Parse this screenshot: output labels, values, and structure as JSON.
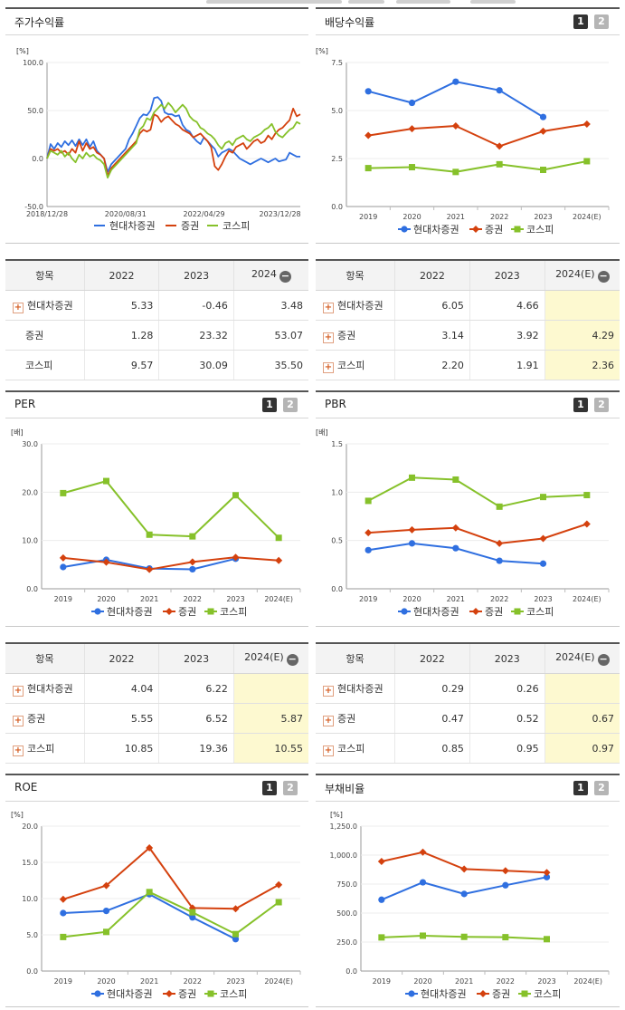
{
  "panels": {
    "p1": {
      "title": "주가수익률",
      "pager": false
    },
    "p2": {
      "title": "배당수익률",
      "pager": true
    },
    "p3": {
      "title": "PER",
      "pager": true
    },
    "p4": {
      "title": "PBR",
      "pager": true
    },
    "p5": {
      "title": "ROE",
      "pager": true
    },
    "p6": {
      "title": "부채비율",
      "pager": true
    }
  },
  "pager": {
    "p1": "1",
    "p2": "2"
  },
  "legend": [
    {
      "name": "현대차증권",
      "color": "#2f6fe0",
      "marker": "circle"
    },
    {
      "name": "증권",
      "color": "#d4410e",
      "marker": "diamond"
    },
    {
      "name": "코스피",
      "color": "#86c12a",
      "marker": "square"
    }
  ],
  "chart_data": [
    {
      "type": "line",
      "id": "p1",
      "unit": "[%]",
      "ylim": [
        -50,
        100
      ],
      "yticks": [
        "100.0",
        "50.0",
        "0.0",
        "-50.0"
      ],
      "yticks_val": [
        100,
        50,
        0,
        -50
      ],
      "x_tick_labels": [
        "2018/12/28",
        "2020/08/31",
        "2022/04/29",
        "2023/12/28"
      ],
      "x_tick_pos": [
        0,
        0.31,
        0.62,
        0.92
      ],
      "series": [
        {
          "name": "현대차증권",
          "values": [
            0,
            15,
            10,
            16,
            12,
            18,
            14,
            19,
            13,
            20,
            14,
            20,
            12,
            18,
            8,
            4,
            0,
            -14,
            -6,
            -2,
            2,
            6,
            10,
            20,
            26,
            34,
            42,
            46,
            45,
            50,
            63,
            64,
            60,
            48,
            46,
            46,
            44,
            45,
            35,
            30,
            28,
            22,
            18,
            15,
            22,
            18,
            14,
            10,
            2,
            6,
            8,
            10,
            8,
            4,
            0,
            -2,
            -4,
            -6,
            -4,
            -2,
            0,
            -2,
            -4,
            -2,
            0,
            -3,
            -2,
            -1,
            6,
            4,
            2,
            2
          ]
        },
        {
          "name": "증권",
          "values": [
            0,
            10,
            8,
            10,
            6,
            8,
            4,
            10,
            6,
            18,
            8,
            16,
            10,
            12,
            6,
            4,
            0,
            -18,
            -10,
            -6,
            -2,
            2,
            6,
            10,
            14,
            18,
            26,
            30,
            28,
            30,
            46,
            44,
            38,
            42,
            44,
            40,
            36,
            34,
            30,
            28,
            26,
            22,
            24,
            26,
            22,
            18,
            12,
            -8,
            -12,
            -6,
            2,
            8,
            6,
            12,
            14,
            16,
            10,
            14,
            18,
            20,
            16,
            18,
            24,
            20,
            26,
            30,
            32,
            36,
            40,
            52,
            44,
            46
          ]
        },
        {
          "name": "코스피",
          "values": [
            0,
            8,
            6,
            4,
            8,
            2,
            6,
            0,
            -4,
            4,
            0,
            6,
            2,
            4,
            0,
            -2,
            -6,
            -20,
            -12,
            -8,
            -4,
            0,
            4,
            8,
            12,
            16,
            30,
            34,
            42,
            40,
            48,
            52,
            56,
            52,
            58,
            54,
            48,
            52,
            56,
            52,
            44,
            40,
            38,
            32,
            30,
            26,
            24,
            20,
            14,
            10,
            16,
            18,
            14,
            20,
            22,
            24,
            20,
            18,
            22,
            24,
            26,
            30,
            32,
            36,
            28,
            24,
            22,
            26,
            30,
            32,
            38,
            36
          ]
        }
      ]
    },
    {
      "type": "line",
      "id": "p2",
      "unit": "[%]",
      "ylim": [
        0,
        7.5
      ],
      "yticks": [
        "7.5",
        "5.0",
        "2.5",
        "0.0"
      ],
      "yticks_val": [
        7.5,
        5.0,
        2.5,
        0.0
      ],
      "categories": [
        "2019",
        "2020",
        "2021",
        "2022",
        "2023",
        "2024(E)"
      ],
      "series": [
        {
          "name": "현대차증권",
          "values": [
            6.0,
            5.4,
            6.5,
            6.05,
            4.66,
            null
          ]
        },
        {
          "name": "증권",
          "values": [
            3.7,
            4.05,
            4.2,
            3.14,
            3.92,
            4.29
          ]
        },
        {
          "name": "코스피",
          "values": [
            2.0,
            2.05,
            1.8,
            2.2,
            1.91,
            2.36
          ]
        }
      ]
    },
    {
      "type": "line",
      "id": "p3",
      "unit": "[배]",
      "ylim": [
        0,
        30
      ],
      "yticks": [
        "30.0",
        "20.0",
        "10.0",
        "0.0"
      ],
      "yticks_val": [
        30,
        20,
        10,
        0
      ],
      "categories": [
        "2019",
        "2020",
        "2021",
        "2022",
        "2023",
        "2024(E)"
      ],
      "series": [
        {
          "name": "현대차증권",
          "values": [
            4.5,
            6.0,
            4.2,
            4.04,
            6.22,
            null
          ]
        },
        {
          "name": "증권",
          "values": [
            6.4,
            5.5,
            4.0,
            5.55,
            6.52,
            5.87
          ]
        },
        {
          "name": "코스피",
          "values": [
            19.8,
            22.3,
            11.2,
            10.85,
            19.36,
            10.55
          ]
        }
      ]
    },
    {
      "type": "line",
      "id": "p4",
      "unit": "[배]",
      "ylim": [
        0,
        1.5
      ],
      "yticks": [
        "1.5",
        "1.0",
        "0.5",
        "0.0"
      ],
      "yticks_val": [
        1.5,
        1.0,
        0.5,
        0.0
      ],
      "categories": [
        "2019",
        "2020",
        "2021",
        "2022",
        "2023",
        "2024(E)"
      ],
      "series": [
        {
          "name": "현대차증권",
          "values": [
            0.4,
            0.47,
            0.42,
            0.29,
            0.26,
            null
          ]
        },
        {
          "name": "증권",
          "values": [
            0.58,
            0.61,
            0.63,
            0.47,
            0.52,
            0.67
          ]
        },
        {
          "name": "코스피",
          "values": [
            0.91,
            1.15,
            1.13,
            0.85,
            0.95,
            0.97
          ]
        }
      ]
    },
    {
      "type": "line",
      "id": "p5",
      "unit": "[%]",
      "ylim": [
        0,
        20
      ],
      "yticks": [
        "20.0",
        "15.0",
        "10.0",
        "5.0",
        "0.0"
      ],
      "yticks_val": [
        20,
        15,
        10,
        5,
        0
      ],
      "categories": [
        "2019",
        "2020",
        "2021",
        "2022",
        "2023",
        "2024(E)"
      ],
      "series": [
        {
          "name": "현대차증권",
          "values": [
            8.0,
            8.3,
            10.6,
            7.4,
            4.4,
            null
          ]
        },
        {
          "name": "증권",
          "values": [
            9.9,
            11.8,
            17.0,
            8.7,
            8.6,
            11.9
          ]
        },
        {
          "name": "코스피",
          "values": [
            4.7,
            5.4,
            10.9,
            8.1,
            5.1,
            9.5
          ]
        }
      ]
    },
    {
      "type": "line",
      "id": "p6",
      "unit": "[%]",
      "ylim": [
        0,
        1250
      ],
      "yticks": [
        "1,250.0",
        "1,000.0",
        "750.0",
        "500.0",
        "250.0",
        "0.0"
      ],
      "yticks_val": [
        1250,
        1000,
        750,
        500,
        250,
        0
      ],
      "categories": [
        "2019",
        "2020",
        "2021",
        "2022",
        "2023",
        "2024(E)"
      ],
      "series": [
        {
          "name": "현대차증권",
          "values": [
            615,
            765,
            665,
            740,
            810,
            null
          ]
        },
        {
          "name": "증권",
          "values": [
            945,
            1025,
            880,
            865,
            850,
            null
          ]
        },
        {
          "name": "코스피",
          "values": [
            290,
            305,
            295,
            292,
            275,
            null
          ]
        }
      ]
    }
  ],
  "tables": {
    "t1": {
      "headers": [
        "항목",
        "2022",
        "2023",
        "2024"
      ],
      "rows": [
        {
          "name": "현대차증권",
          "plus": true,
          "cells": [
            "5.33",
            "-0.46",
            "3.48"
          ]
        },
        {
          "name": "증권",
          "plus": false,
          "cells": [
            "1.28",
            "23.32",
            "53.07"
          ]
        },
        {
          "name": "코스피",
          "plus": false,
          "cells": [
            "9.57",
            "30.09",
            "35.50"
          ]
        }
      ]
    },
    "t2": {
      "headers": [
        "항목",
        "2022",
        "2023",
        "2024(E)"
      ],
      "rows": [
        {
          "name": "현대차증권",
          "plus": true,
          "cells": [
            "6.05",
            "4.66",
            ""
          ]
        },
        {
          "name": "증권",
          "plus": true,
          "cells": [
            "3.14",
            "3.92",
            "4.29"
          ]
        },
        {
          "name": "코스피",
          "plus": true,
          "cells": [
            "2.20",
            "1.91",
            "2.36"
          ]
        }
      ]
    },
    "t3": {
      "headers": [
        "항목",
        "2022",
        "2023",
        "2024(E)"
      ],
      "rows": [
        {
          "name": "현대차증권",
          "plus": true,
          "cells": [
            "4.04",
            "6.22",
            ""
          ]
        },
        {
          "name": "증권",
          "plus": true,
          "cells": [
            "5.55",
            "6.52",
            "5.87"
          ]
        },
        {
          "name": "코스피",
          "plus": true,
          "cells": [
            "10.85",
            "19.36",
            "10.55"
          ]
        }
      ]
    },
    "t4": {
      "headers": [
        "항목",
        "2022",
        "2023",
        "2024(E)"
      ],
      "rows": [
        {
          "name": "현대차증권",
          "plus": true,
          "cells": [
            "0.29",
            "0.26",
            ""
          ]
        },
        {
          "name": "증권",
          "plus": true,
          "cells": [
            "0.47",
            "0.52",
            "0.67"
          ]
        },
        {
          "name": "코스피",
          "plus": true,
          "cells": [
            "0.85",
            "0.95",
            "0.97"
          ]
        }
      ]
    }
  }
}
